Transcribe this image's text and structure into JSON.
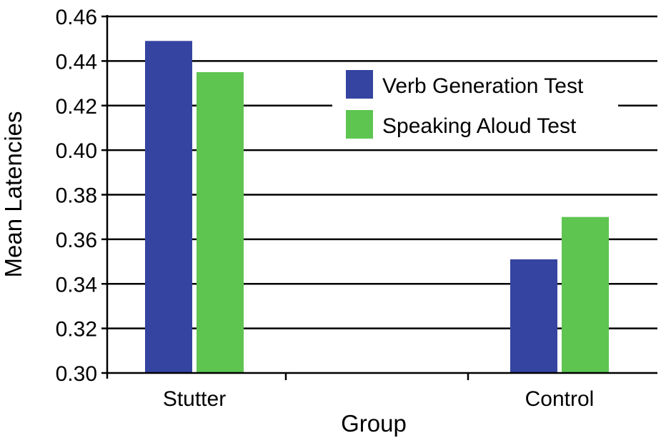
{
  "chart_data": {
    "type": "bar",
    "title": "",
    "xlabel": "Group",
    "ylabel": "Mean Latencies",
    "categories": [
      "Stutter",
      "Control"
    ],
    "series": [
      {
        "name": "Verb Generation Test",
        "color": "#3444a0",
        "values": [
          0.449,
          0.351
        ]
      },
      {
        "name": "Speaking Aloud Test",
        "color": "#5ec550",
        "values": [
          0.435,
          0.37
        ]
      }
    ],
    "ylim": [
      0.3,
      0.46
    ],
    "yticks": [
      "0.30",
      "0.32",
      "0.34",
      "0.36",
      "0.38",
      "0.40",
      "0.42",
      "0.44",
      "0.46"
    ],
    "grid": true,
    "legend_position": "top-right"
  }
}
